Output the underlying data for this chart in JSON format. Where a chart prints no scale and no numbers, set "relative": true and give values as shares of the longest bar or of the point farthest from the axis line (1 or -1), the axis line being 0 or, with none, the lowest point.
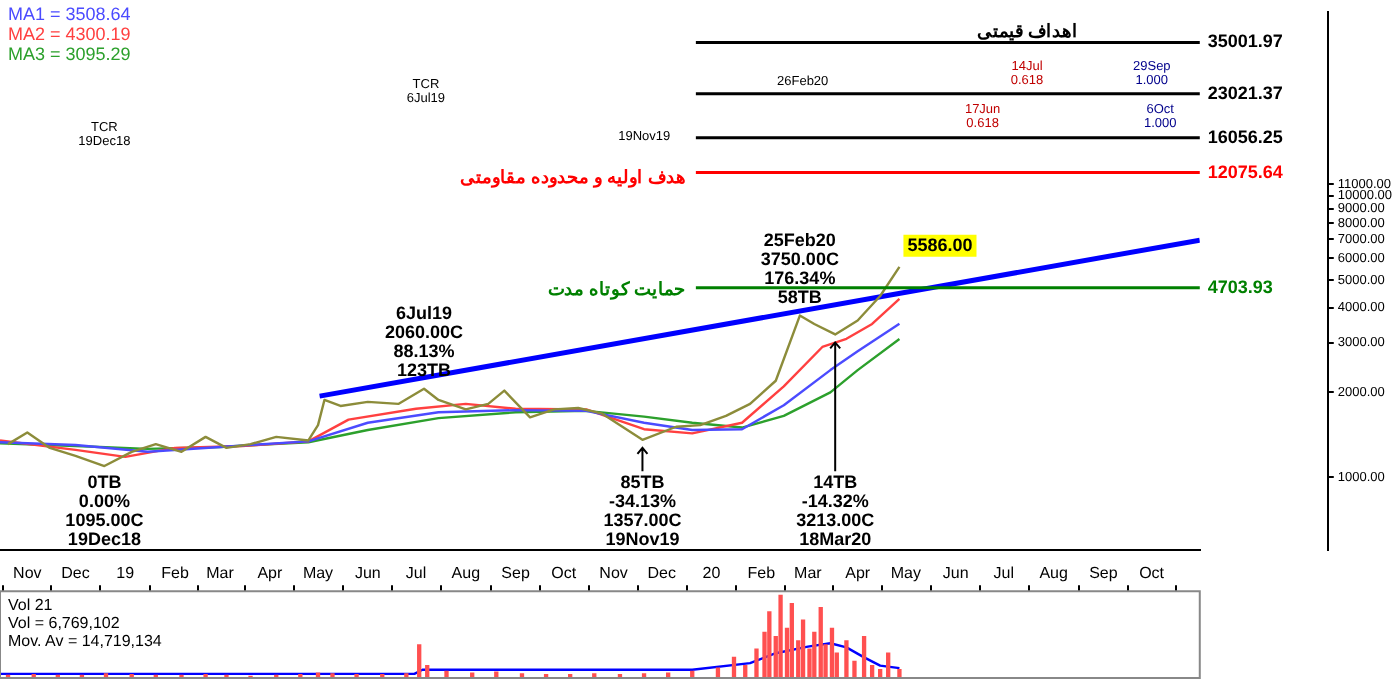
{
  "chart_data": [
    {
      "type": "line",
      "log": true,
      "grid": false,
      "legend": "top left",
      "marker": "none",
      "tick_labels": "y",
      "ylim": [
        550,
        45000
      ],
      "yticks": [
        {
          "value": 1000,
          "label": "1000.00"
        },
        {
          "value": 2000,
          "label": "2000.00"
        },
        {
          "value": 3000,
          "label": "3000.00"
        },
        {
          "value": 4000,
          "label": "4000.00"
        },
        {
          "value": 5000,
          "label": "5000.00"
        },
        {
          "value": 6000,
          "label": "6000.00"
        },
        {
          "value": 7000,
          "label": "7000.00"
        },
        {
          "value": 8000,
          "label": "8000.00"
        },
        {
          "value": 9000,
          "label": "9000.00"
        },
        {
          "value": 10000,
          "label": "10000.00"
        },
        {
          "value": 11000,
          "label": "11000.00"
        }
      ],
      "xlim": [
        "2018-10-15",
        "2020-10-31"
      ],
      "series": [
        {
          "color": "#8c8c3a",
          "x": [
            "2018-10-20",
            "2018-11-01",
            "2018-11-15",
            "2018-12-01",
            "2018-12-19",
            "2019-01-05",
            "2019-01-20",
            "2019-02-05",
            "2019-02-20",
            "2019-03-05",
            "2019-03-20",
            "2019-04-05",
            "2019-04-25",
            "2019-05-01",
            "2019-05-05",
            "2019-05-15",
            "2019-06-01",
            "2019-06-20",
            "2019-07-06",
            "2019-07-15",
            "2019-08-01",
            "2019-08-15",
            "2019-08-25",
            "2019-09-10",
            "2019-09-25",
            "2019-10-10",
            "2019-10-25",
            "2019-11-19",
            "2019-12-10",
            "2019-12-25",
            "2020-01-10",
            "2020-01-25",
            "2020-02-10",
            "2020-02-25",
            "2020-03-05",
            "2020-03-18",
            "2020-04-01",
            "2020-04-15",
            "2020-04-27"
          ],
          "values": [
            1310,
            1440,
            1270,
            1190,
            1095,
            1230,
            1310,
            1230,
            1390,
            1270,
            1310,
            1390,
            1350,
            1530,
            1880,
            1790,
            1850,
            1820,
            2060,
            1880,
            1740,
            1820,
            2030,
            1630,
            1740,
            1760,
            1680,
            1357,
            1510,
            1530,
            1650,
            1820,
            2200,
            3750,
            3500,
            3213,
            3600,
            4400,
            5586
          ]
        },
        {
          "name": "MA1 = 3508.64",
          "color": "#4b4bff",
          "x": [
            "2018-10-15",
            "2018-12-01",
            "2019-01-15",
            "2019-03-01",
            "2019-04-25",
            "2019-06-01",
            "2019-07-15",
            "2019-09-01",
            "2019-10-15",
            "2019-11-20",
            "2019-12-20",
            "2020-01-20",
            "2020-02-15",
            "2020-03-15",
            "2020-04-01",
            "2020-04-27"
          ],
          "values": [
            1330,
            1300,
            1230,
            1280,
            1340,
            1560,
            1700,
            1730,
            1720,
            1560,
            1470,
            1480,
            1800,
            2400,
            2800,
            3508.64
          ]
        },
        {
          "name": "MA2 = 4300.19",
          "color": "#ff4040",
          "x": [
            "2018-10-15",
            "2018-12-01",
            "2019-01-01",
            "2019-02-01",
            "2019-03-15",
            "2019-04-25",
            "2019-05-20",
            "2019-07-01",
            "2019-08-01",
            "2019-09-01",
            "2019-10-15",
            "2019-11-20",
            "2019-12-20",
            "2020-01-20",
            "2020-02-15",
            "2020-03-10",
            "2020-03-25",
            "2020-04-10",
            "2020-04-27"
          ],
          "values": [
            1350,
            1250,
            1180,
            1270,
            1290,
            1340,
            1600,
            1750,
            1820,
            1750,
            1740,
            1480,
            1430,
            1560,
            2100,
            2900,
            3100,
            3500,
            4300.19
          ]
        },
        {
          "name": "MA3 = 3095.29",
          "color": "#2ca02c",
          "x": [
            "2018-10-15",
            "2018-12-01",
            "2019-01-15",
            "2019-03-01",
            "2019-04-25",
            "2019-06-01",
            "2019-07-15",
            "2019-09-01",
            "2019-10-15",
            "2019-11-20",
            "2019-12-20",
            "2020-01-20",
            "2020-02-15",
            "2020-03-15",
            "2020-04-01",
            "2020-04-27"
          ],
          "values": [
            1320,
            1290,
            1260,
            1280,
            1330,
            1470,
            1620,
            1700,
            1720,
            1640,
            1560,
            1500,
            1650,
            2000,
            2400,
            3095.29
          ]
        },
        {
          "color": "#0000ff",
          "x": [
            "2019-05-02",
            "2020-10-31"
          ],
          "values": [
            1940,
            6950
          ]
        }
      ],
      "ref_lines": [
        {
          "axis": "y",
          "value": 35001.97,
          "label": "35001.97",
          "color": "#000000"
        },
        {
          "axis": "y",
          "value": 23021.37,
          "label": "23021.37",
          "color": "#000000"
        },
        {
          "axis": "y",
          "value": 16056.25,
          "label": "16056.25",
          "color": "#000000"
        },
        {
          "axis": "y",
          "value": 12075.64,
          "label": "12075.64",
          "color": "#ff0000"
        },
        {
          "axis": "y",
          "value": 4703.93,
          "label": "4703.93",
          "color": "#008000"
        }
      ],
      "annotations": [
        {
          "text": "6Jul19\n2060.00C\n88.13%\n123TB",
          "x": "2019-07-06",
          "y": 2060
        },
        {
          "text": "25Feb20\n3750.00C\n176.34%\n58TB",
          "x": "2020-02-25",
          "y": 3750
        },
        {
          "text": "0TB\n0.00%\n1095.00C\n19Dec18",
          "x": "2018-12-19",
          "y": 1095
        },
        {
          "text": "85TB\n-34.13%\n1357.00C\n19Nov19",
          "x": "2019-11-19",
          "y": 1357
        },
        {
          "text": "14TB\n-14.32%\n3213.00C\n18Mar20",
          "x": "2020-03-18",
          "y": 3213
        },
        "TCR\n6Jul19",
        "TCR\n19Dec18",
        "26Feb20",
        "19Nov19",
        "14Jul\n0.618",
        "17Jun\n0.618",
        "29Sep\n1.000",
        "6Oct\n1.000",
        "اهداف قیمتی",
        "هدف اولیه و محدوده مقاومتی",
        "حمایت کوتاه مدت",
        {
          "text": "5586.00",
          "x": "2020-04-27",
          "y": 5586
        }
      ]
    },
    {
      "type": "bar",
      "relative": true,
      "tick_labels": "x",
      "marker": "none",
      "xlim": [
        "2018-10-15",
        "2020-10-31"
      ],
      "xticks": [
        {
          "value": "2018-11-01",
          "label": "Nov"
        },
        {
          "value": "2018-12-01",
          "label": "Dec"
        },
        {
          "value": "2019-01-01",
          "label": "19"
        },
        {
          "value": "2019-02-01",
          "label": "Feb"
        },
        {
          "value": "2019-03-01",
          "label": "Mar"
        },
        {
          "value": "2019-04-01",
          "label": "Apr"
        },
        {
          "value": "2019-05-01",
          "label": "May"
        },
        {
          "value": "2019-06-01",
          "label": "Jun"
        },
        {
          "value": "2019-07-01",
          "label": "Jul"
        },
        {
          "value": "2019-08-01",
          "label": "Aug"
        },
        {
          "value": "2019-09-01",
          "label": "Sep"
        },
        {
          "value": "2019-10-01",
          "label": "Oct"
        },
        {
          "value": "2019-11-01",
          "label": "Nov"
        },
        {
          "value": "2019-12-01",
          "label": "Dec"
        },
        {
          "value": "2020-01-01",
          "label": "20"
        },
        {
          "value": "2020-02-01",
          "label": "Feb"
        },
        {
          "value": "2020-03-01",
          "label": "Mar"
        },
        {
          "value": "2020-04-01",
          "label": "Apr"
        },
        {
          "value": "2020-05-01",
          "label": "May"
        },
        {
          "value": "2020-06-01",
          "label": "Jun"
        },
        {
          "value": "2020-07-01",
          "label": "Jul"
        },
        {
          "value": "2020-08-01",
          "label": "Aug"
        },
        {
          "value": "2020-09-01",
          "label": "Sep"
        },
        {
          "value": "2020-10-01",
          "label": "Oct"
        }
      ],
      "series": [
        {
          "color": "#ff5050",
          "x": [
            "2018-10-20",
            "2018-11-05",
            "2018-11-20",
            "2018-12-05",
            "2018-12-20",
            "2019-01-05",
            "2019-01-20",
            "2019-02-05",
            "2019-02-20",
            "2019-03-05",
            "2019-03-20",
            "2019-04-05",
            "2019-04-20",
            "2019-05-01",
            "2019-05-10",
            "2019-05-25",
            "2019-06-10",
            "2019-06-25",
            "2019-07-03",
            "2019-07-08",
            "2019-07-20",
            "2019-08-05",
            "2019-08-20",
            "2019-09-05",
            "2019-09-20",
            "2019-10-05",
            "2019-10-20",
            "2019-11-05",
            "2019-11-20",
            "2019-12-05",
            "2019-12-20",
            "2020-01-05",
            "2020-01-15",
            "2020-01-22",
            "2020-01-29",
            "2020-02-03",
            "2020-02-06",
            "2020-02-10",
            "2020-02-13",
            "2020-02-17",
            "2020-02-20",
            "2020-02-24",
            "2020-02-27",
            "2020-03-02",
            "2020-03-05",
            "2020-03-09",
            "2020-03-12",
            "2020-03-16",
            "2020-03-19",
            "2020-03-25",
            "2020-03-30",
            "2020-04-05",
            "2020-04-10",
            "2020-04-15",
            "2020-04-20",
            "2020-04-27"
          ],
          "values": [
            0.03,
            0.04,
            0.03,
            0.03,
            0.05,
            0.04,
            0.03,
            0.03,
            0.04,
            0.03,
            0.02,
            0.03,
            0.04,
            0.06,
            0.05,
            0.04,
            0.04,
            0.05,
            0.4,
            0.15,
            0.08,
            0.06,
            0.07,
            0.05,
            0.04,
            0.04,
            0.05,
            0.04,
            0.05,
            0.06,
            0.08,
            0.12,
            0.25,
            0.15,
            0.35,
            0.55,
            0.8,
            0.5,
            1,
            0.6,
            0.9,
            0.45,
            0.7,
            0.35,
            0.55,
            0.85,
            0.4,
            0.6,
            0.3,
            0.45,
            0.2,
            0.5,
            0.15,
            0.1,
            0.3,
            0.1
          ]
        },
        {
          "type": "line",
          "color": "#0000ff",
          "x": [
            "2018-10-15",
            "2019-06-30",
            "2019-07-05",
            "2019-10-01",
            "2019-12-20",
            "2020-01-25",
            "2020-02-10",
            "2020-03-01",
            "2020-03-15",
            "2020-03-25",
            "2020-04-05",
            "2020-04-15",
            "2020-04-27"
          ],
          "values": [
            0.05,
            0.05,
            0.1,
            0.1,
            0.1,
            0.18,
            0.3,
            0.38,
            0.42,
            0.37,
            0.25,
            0.15,
            0.12
          ]
        }
      ],
      "annotations": [
        "Vol 21",
        "Vol = 6,769,102",
        "Mov. Av = 14,719,134"
      ]
    }
  ]
}
